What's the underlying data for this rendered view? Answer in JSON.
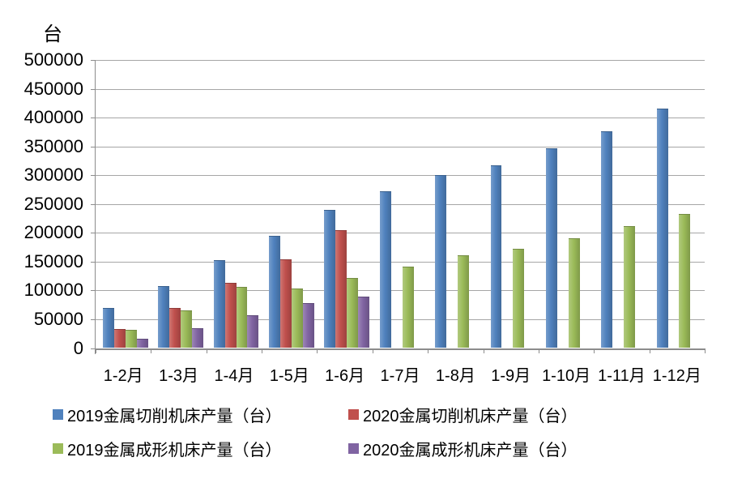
{
  "unit_label": "台",
  "chart_data": {
    "type": "bar",
    "title": "",
    "unit": "台",
    "categories": [
      "1-2月",
      "1-3月",
      "1-4月",
      "1-5月",
      "1-6月",
      "1-7月",
      "1-8月",
      "1-9月",
      "1-10月",
      "1-11月",
      "1-12月"
    ],
    "series": [
      {
        "name": "2019金属切削机床产量（台）",
        "color": "#4F81BD",
        "values": [
          69000,
          107000,
          152000,
          195000,
          240000,
          272000,
          300000,
          317000,
          347000,
          376000,
          415000
        ]
      },
      {
        "name": "2020金属切削机床产量（台）",
        "color": "#C0504D",
        "values": [
          33000,
          70000,
          113000,
          154000,
          204000,
          null,
          null,
          null,
          null,
          null,
          null
        ]
      },
      {
        "name": "2019金属成形机床产量（台）",
        "color": "#9BBB59",
        "values": [
          31000,
          65000,
          106000,
          104000,
          122000,
          142000,
          161000,
          172000,
          190000,
          211000,
          233000
        ]
      },
      {
        "name": "2020金属成形机床产量（台）",
        "color": "#8064A2",
        "values": [
          16000,
          35000,
          57000,
          78000,
          90000,
          null,
          null,
          null,
          null,
          null,
          null
        ]
      }
    ],
    "ylim": [
      0,
      500000
    ],
    "ytick_step": 50000,
    "ytick_labels": [
      "500000",
      "450000",
      "400000",
      "350000",
      "300000",
      "250000",
      "200000",
      "150000",
      "100000",
      "50000",
      "0"
    ],
    "grid": true,
    "legend_position": "bottom",
    "gridline_color": "#A6A6A6",
    "axis_color": "#8C8C8C",
    "text_color": "#000000"
  }
}
